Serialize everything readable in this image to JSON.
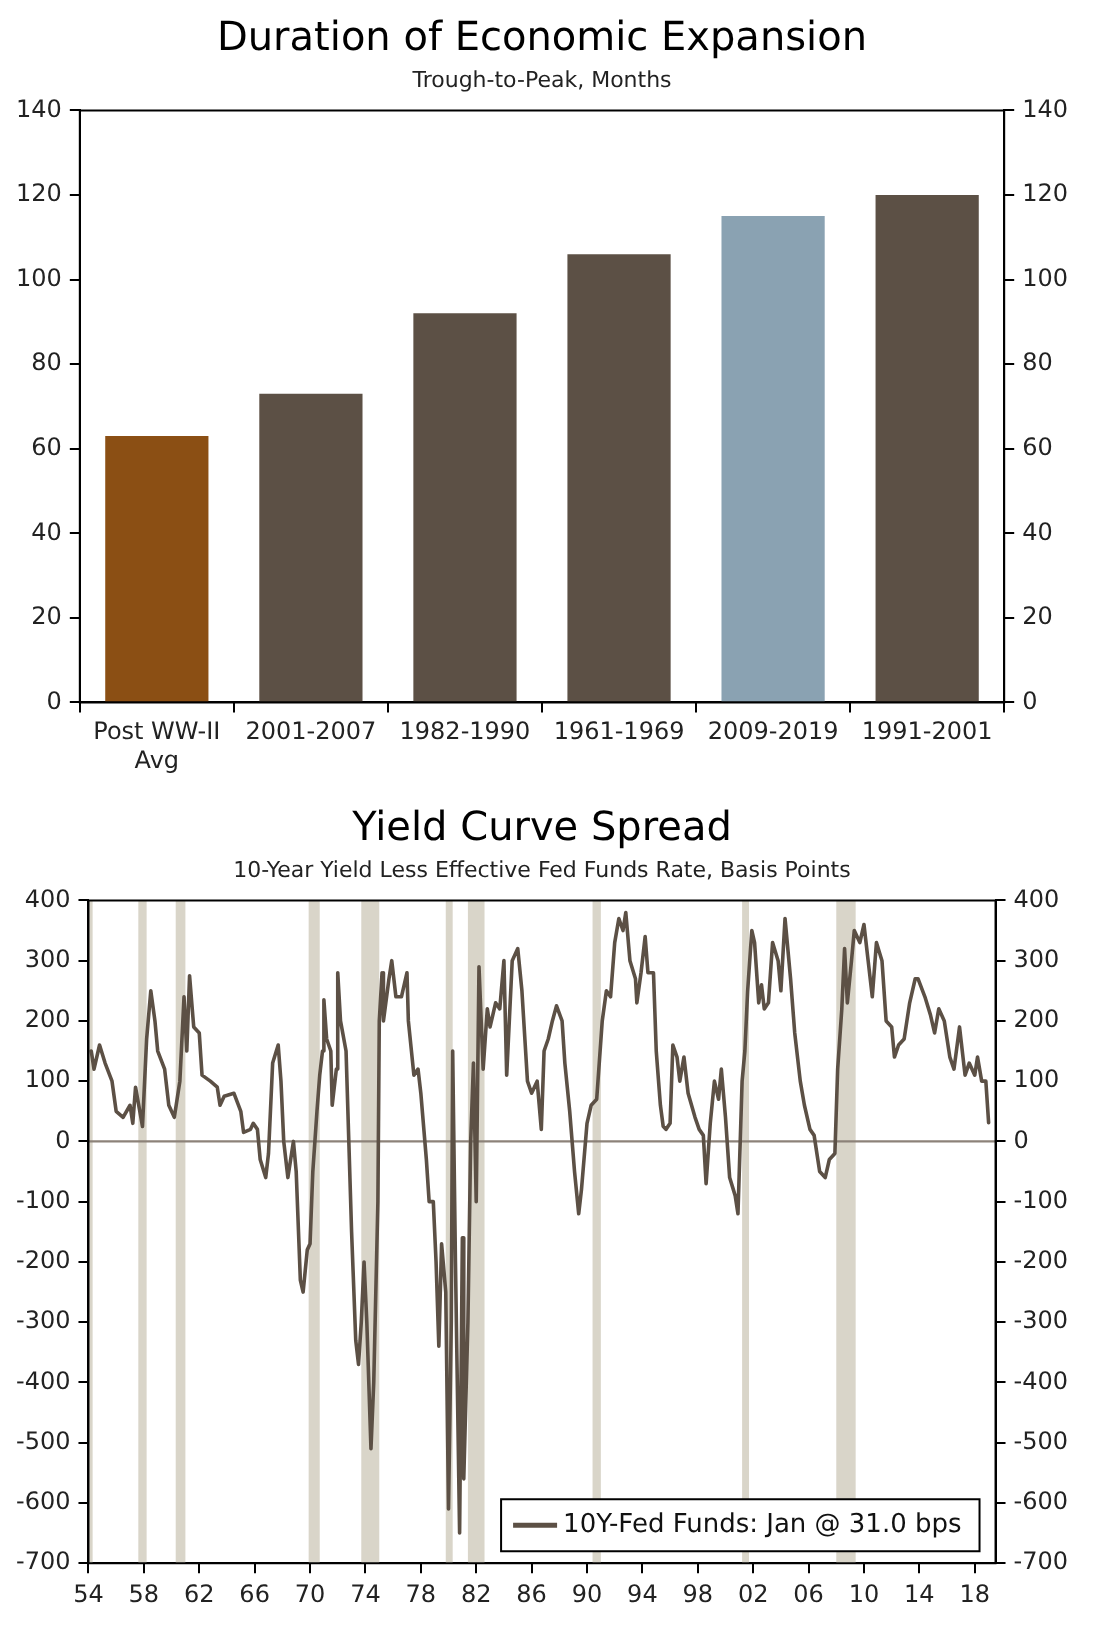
{
  "chart_data": [
    {
      "type": "bar",
      "title": "Duration of Economic Expansion",
      "subtitle": "Trough-to-Peak, Months",
      "categories": [
        "Post WW-II Avg",
        "2001-2007",
        "1982-1990",
        "1961-1969",
        "2009-2019",
        "1991-2001"
      ],
      "values": [
        63,
        73,
        92,
        106,
        115,
        120
      ],
      "colors": [
        "#8b4f14",
        "#5c5045",
        "#5c5045",
        "#5c5045",
        "#8aa2b2",
        "#5c5045"
      ],
      "ylim": [
        0,
        140
      ],
      "yticks": [
        0,
        20,
        40,
        60,
        80,
        100,
        120,
        140
      ],
      "y2lim": [
        0,
        140
      ],
      "y2ticks": [
        0,
        20,
        40,
        60,
        80,
        100,
        120,
        140
      ],
      "grid": false,
      "legend": false
    },
    {
      "type": "line",
      "title": "Yield Curve Spread",
      "subtitle": "10-Year Yield Less Effective Fed Funds Rate, Basis Points",
      "series": [
        {
          "name": "10Y-Fed Funds: Jan @ 31.0 bps",
          "color": "#5c5045",
          "x": [
            1954.2,
            1954.4,
            1954.8,
            1955.2,
            1955.7,
            1956.0,
            1956.5,
            1957.0,
            1957.2,
            1957.4,
            1957.9,
            1958.2,
            1958.5,
            1958.8,
            1959.0,
            1959.5,
            1959.8,
            1960.2,
            1960.6,
            1960.9,
            1961.1,
            1961.3,
            1961.6,
            1962.0,
            1962.2,
            1962.8,
            1963.3,
            1963.5,
            1963.8,
            1964.5,
            1965.0,
            1965.2,
            1965.7,
            1965.9,
            1966.2,
            1966.4,
            1966.8,
            1967.0,
            1967.3,
            1967.7,
            1967.9,
            1968.1,
            1968.4,
            1968.8,
            1969.0,
            1969.3,
            1969.5,
            1969.8,
            1970.0,
            1970.2,
            1970.5,
            1970.7,
            1970.9,
            1971.0,
            1971.2,
            1971.5,
            1971.6,
            1971.9,
            1972.0,
            1972.2,
            1972.6,
            1972.8,
            1973.0,
            1973.3,
            1973.5,
            1973.7,
            1973.9,
            1974.1,
            1974.4,
            1974.6,
            1974.9,
            1975.0,
            1975.2,
            1975.3,
            1975.7,
            1975.9,
            1976.2,
            1976.6,
            1977.0,
            1977.1,
            1977.5,
            1977.8,
            1978.0,
            1978.4,
            1978.6,
            1978.9,
            1979.1,
            1979.3,
            1979.5,
            1979.8,
            1980.0,
            1980.2,
            1980.3,
            1980.5,
            1980.8,
            1981.0,
            1981.1,
            1981.4,
            1981.6,
            1981.8,
            1982.0,
            1982.2,
            1982.5,
            1982.8,
            1983.0,
            1983.4,
            1983.7,
            1984.0,
            1984.2,
            1984.6,
            1985.0,
            1985.3,
            1985.7,
            1986.0,
            1986.4,
            1986.7,
            1986.9,
            1987.2,
            1987.5,
            1987.8,
            1988.2,
            1988.4,
            1988.75,
            1989.1,
            1989.4,
            1989.6,
            1990.0,
            1990.3,
            1990.7,
            1991.1,
            1991.4,
            1991.7,
            1992.0,
            1992.3,
            1992.6,
            1992.8,
            1993.1,
            1993.5,
            1993.6,
            1993.9,
            1994.2,
            1994.4,
            1994.8,
            1995.0,
            1995.3,
            1995.5,
            1995.7,
            1996.0,
            1996.2,
            1996.5,
            1996.7,
            1997.0,
            1997.3,
            1997.8,
            1998.1,
            1998.4,
            1998.6,
            1998.9,
            1999.2,
            1999.5,
            1999.7,
            2000.0,
            2000.3,
            2000.7,
            2000.9,
            2001.2,
            2001.4,
            2001.6,
            2001.9,
            2002.1,
            2002.4,
            2002.6,
            2002.8,
            2003.1,
            2003.4,
            2003.8,
            2004.0,
            2004.3,
            2004.7,
            2005.0,
            2005.4,
            2005.7,
            2006.1,
            2006.4,
            2006.8,
            2007.2,
            2007.5,
            2007.9,
            2008.1,
            2008.4,
            2008.6,
            2008.8,
            2009.1,
            2009.3,
            2009.7,
            2010.0,
            2010.3,
            2010.6,
            2010.9,
            2011.3,
            2011.6,
            2012.0,
            2012.2,
            2012.5,
            2012.9,
            2013.3,
            2013.7,
            2013.9,
            2014.4,
            2014.8,
            2015.1,
            2015.4,
            2015.8,
            2016.2,
            2016.5,
            2016.9,
            2017.3,
            2017.6,
            2018.0,
            2018.2,
            2018.5,
            2018.8,
            2019.0
          ],
          "values": [
            150,
            120,
            160,
            130,
            100,
            50,
            40,
            60,
            30,
            90,
            25,
            170,
            250,
            200,
            150,
            120,
            60,
            40,
            100,
            240,
            150,
            275,
            190,
            180,
            110,
            100,
            90,
            60,
            75,
            80,
            50,
            15,
            20,
            30,
            20,
            -30,
            -60,
            -20,
            130,
            160,
            100,
            0,
            -60,
            0,
            -50,
            -230,
            -250,
            -180,
            -170,
            -50,
            50,
            110,
            150,
            235,
            170,
            150,
            60,
            120,
            280,
            200,
            150,
            0,
            -150,
            -330,
            -370,
            -300,
            -200,
            -300,
            -510,
            -400,
            -100,
            200,
            280,
            200,
            270,
            300,
            240,
            240,
            280,
            200,
            110,
            120,
            80,
            -30,
            -100,
            -100,
            -200,
            -340,
            -170,
            -250,
            -610,
            -300,
            150,
            -200,
            -650,
            -160,
            -560,
            -300,
            0,
            130,
            -100,
            290,
            120,
            220,
            190,
            230,
            220,
            300,
            110,
            300,
            320,
            250,
            100,
            80,
            100,
            20,
            150,
            170,
            200,
            225,
            200,
            130,
            50,
            -50,
            -120,
            -80,
            30,
            60,
            70,
            200,
            250,
            240,
            330,
            370,
            350,
            380,
            300,
            270,
            230,
            280,
            340,
            280,
            280,
            150,
            60,
            25,
            20,
            30,
            160,
            140,
            100,
            140,
            80,
            40,
            20,
            10,
            -70,
            30,
            100,
            70,
            120,
            40,
            -60,
            -90,
            -120,
            100,
            150,
            250,
            350,
            330,
            230,
            260,
            220,
            230,
            330,
            300,
            250,
            370,
            270,
            180,
            100,
            60,
            20,
            10,
            -50,
            -60,
            -30,
            -20,
            120,
            220,
            320,
            230,
            300,
            350,
            330,
            360,
            300,
            240,
            330,
            300,
            200,
            190,
            140,
            160,
            170,
            230,
            270,
            270,
            240,
            210,
            180,
            220,
            200,
            140,
            120,
            190,
            110,
            130,
            110,
            140,
            100,
            100,
            31
          ]
        }
      ],
      "xlim": [
        1954,
        2019.5
      ],
      "xticks": [
        {
          "value": 1954,
          "label": "54"
        },
        {
          "value": 1958,
          "label": "58"
        },
        {
          "value": 1962,
          "label": "62"
        },
        {
          "value": 1966,
          "label": "66"
        },
        {
          "value": 1970,
          "label": "70"
        },
        {
          "value": 1974,
          "label": "74"
        },
        {
          "value": 1978,
          "label": "78"
        },
        {
          "value": 1982,
          "label": "82"
        },
        {
          "value": 1986,
          "label": "86"
        },
        {
          "value": 1990,
          "label": "90"
        },
        {
          "value": 1994,
          "label": "94"
        },
        {
          "value": 1998,
          "label": "98"
        },
        {
          "value": 2002,
          "label": "02"
        },
        {
          "value": 2006,
          "label": "06"
        },
        {
          "value": 2010,
          "label": "10"
        },
        {
          "value": 2014,
          "label": "14"
        },
        {
          "value": 2018,
          "label": "18"
        }
      ],
      "ylim": [
        -700,
        400
      ],
      "yticks": [
        -700,
        -600,
        -500,
        -400,
        -300,
        -200,
        -100,
        0,
        100,
        200,
        300,
        400
      ],
      "y2lim": [
        -700,
        400
      ],
      "y2ticks": [
        -700,
        -600,
        -500,
        -400,
        -300,
        -200,
        -100,
        0,
        100,
        200,
        300,
        400
      ],
      "ref_lines": [
        {
          "axis": "y",
          "value": 0,
          "color": "#8c8279"
        }
      ],
      "bands": [
        {
          "axis": "x",
          "from": 1954.0,
          "to": 1954.3,
          "color": "#d9d5c9"
        },
        {
          "axis": "x",
          "from": 1957.6,
          "to": 1958.2,
          "color": "#d9d5c9"
        },
        {
          "axis": "x",
          "from": 1960.3,
          "to": 1961.0,
          "color": "#d9d5c9"
        },
        {
          "axis": "x",
          "from": 1969.9,
          "to": 1970.7,
          "color": "#d9d5c9"
        },
        {
          "axis": "x",
          "from": 1973.7,
          "to": 1975.0,
          "color": "#d9d5c9"
        },
        {
          "axis": "x",
          "from": 1979.8,
          "to": 1980.3,
          "color": "#d9d5c9"
        },
        {
          "axis": "x",
          "from": 1981.4,
          "to": 1982.6,
          "color": "#d9d5c9"
        },
        {
          "axis": "x",
          "from": 1990.4,
          "to": 1991.0,
          "color": "#d9d5c9"
        },
        {
          "axis": "x",
          "from": 2001.2,
          "to": 2001.7,
          "color": "#d9d5c9"
        },
        {
          "axis": "x",
          "from": 2008.0,
          "to": 2009.4,
          "color": "#d9d5c9"
        }
      ],
      "grid": false,
      "legend": "bottom right",
      "marker": "none",
      "line_style": "solid"
    }
  ]
}
